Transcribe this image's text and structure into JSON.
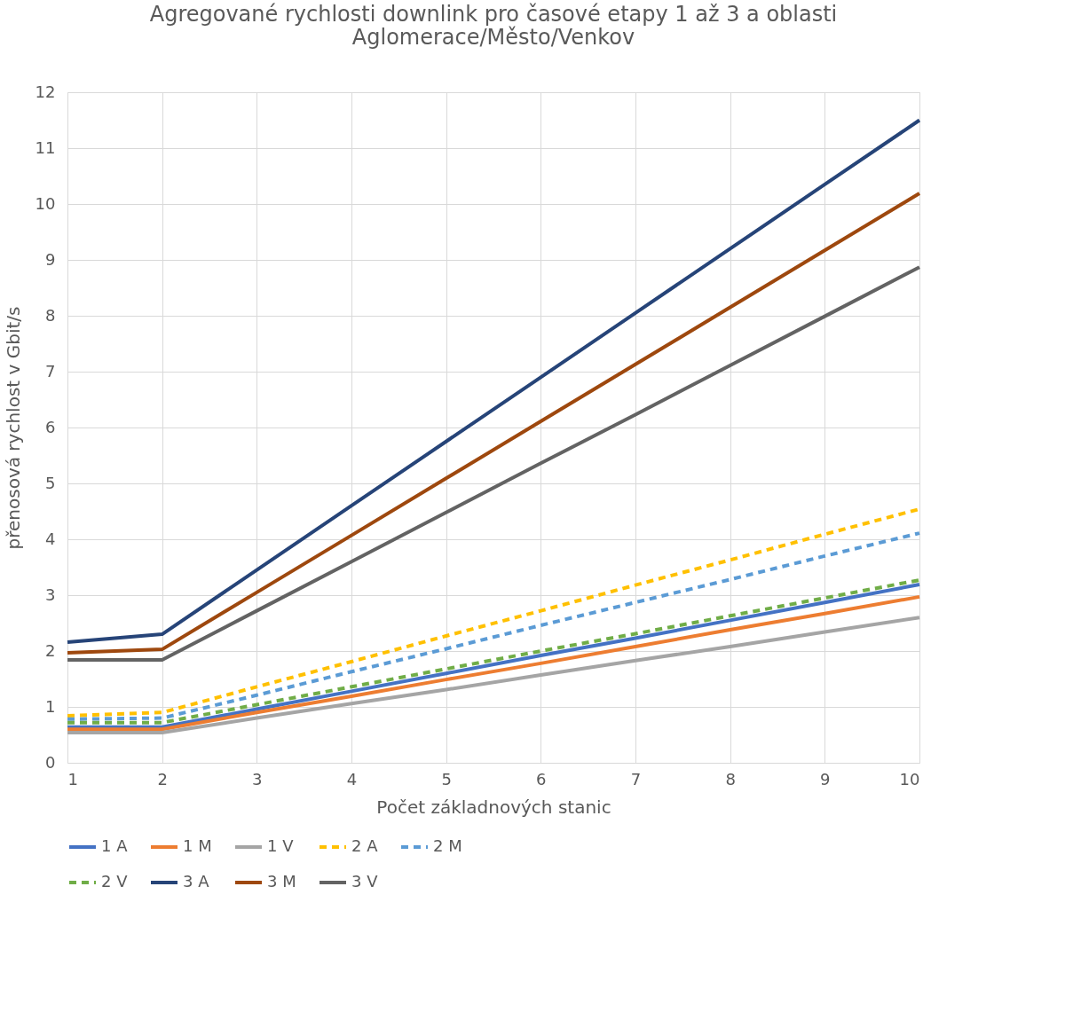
{
  "chart_data": {
    "type": "line",
    "title": [
      "Agregované rychlosti downlink pro časové etapy 1 až 3 a oblasti",
      "Aglomerace/Město/Venkov"
    ],
    "xlabel": "Počet základnových stanic",
    "ylabel": "přenosová rychlost v Gbit/s",
    "x": [
      1,
      2,
      3,
      4,
      5,
      6,
      7,
      8,
      9,
      10
    ],
    "xlim": [
      1,
      10
    ],
    "xticks": [
      1,
      2,
      3,
      4,
      5,
      6,
      7,
      8,
      9,
      10
    ],
    "ylim": [
      0,
      12
    ],
    "yticks": [
      0,
      1,
      2,
      3,
      4,
      5,
      6,
      7,
      8,
      9,
      10,
      11,
      12
    ],
    "grid": true,
    "legend": "bottom",
    "marker": "none",
    "series": [
      {
        "name": "1 A",
        "color": "#4472c4",
        "line_style": "solid",
        "values": [
          0.64,
          0.64,
          0.96,
          1.28,
          1.6,
          1.92,
          2.23,
          2.55,
          2.87,
          3.19
        ]
      },
      {
        "name": "1 M",
        "color": "#ed7d31",
        "line_style": "solid",
        "values": [
          0.6,
          0.6,
          0.9,
          1.19,
          1.49,
          1.78,
          2.08,
          2.38,
          2.67,
          2.97
        ]
      },
      {
        "name": "1 V",
        "color": "#a5a5a5",
        "line_style": "solid",
        "values": [
          0.54,
          0.54,
          0.8,
          1.06,
          1.31,
          1.57,
          1.83,
          2.08,
          2.34,
          2.6
        ]
      },
      {
        "name": "2 A",
        "color": "#ffc000",
        "line_style": "dashed",
        "values": [
          0.84,
          0.9,
          1.36,
          1.81,
          2.27,
          2.72,
          3.18,
          3.63,
          4.09,
          4.54
        ]
      },
      {
        "name": "2 M",
        "color": "#5b9bd5",
        "line_style": "dashed",
        "values": [
          0.78,
          0.8,
          1.21,
          1.63,
          2.04,
          2.46,
          2.87,
          3.28,
          3.7,
          4.11
        ]
      },
      {
        "name": "2 V",
        "color": "#70ad47",
        "line_style": "dashed",
        "values": [
          0.72,
          0.72,
          1.04,
          1.36,
          1.68,
          2.0,
          2.31,
          2.63,
          2.95,
          3.27
        ]
      },
      {
        "name": "3 A",
        "color": "#264478",
        "line_style": "solid",
        "values": [
          2.16,
          2.3,
          3.45,
          4.6,
          5.75,
          6.9,
          8.05,
          9.2,
          10.35,
          11.5
        ]
      },
      {
        "name": "3 M",
        "color": "#9e480e",
        "line_style": "solid",
        "values": [
          1.97,
          2.03,
          3.05,
          4.07,
          5.09,
          6.11,
          7.13,
          8.15,
          9.17,
          10.19
        ]
      },
      {
        "name": "3 V",
        "color": "#636363",
        "line_style": "solid",
        "values": [
          1.84,
          1.84,
          2.72,
          3.6,
          4.48,
          5.36,
          6.23,
          7.11,
          7.99,
          8.87
        ]
      }
    ]
  }
}
